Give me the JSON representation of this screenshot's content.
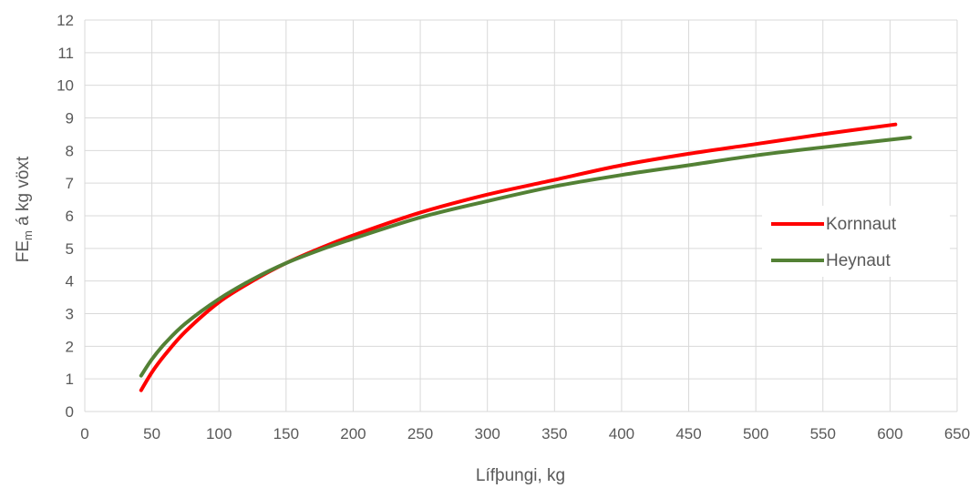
{
  "chart_data": {
    "type": "line",
    "title": "",
    "xlabel": "Lífþungi, kg",
    "ylabel": {
      "base": "FE",
      "subscript": "m",
      "rest": " á kg vöxt"
    },
    "xlim": [
      0,
      650
    ],
    "ylim": [
      0,
      12
    ],
    "xticks": [
      0,
      50,
      100,
      150,
      200,
      250,
      300,
      350,
      400,
      450,
      500,
      550,
      600,
      650
    ],
    "yticks": [
      0,
      1,
      2,
      3,
      4,
      5,
      6,
      7,
      8,
      9,
      10,
      11,
      12
    ],
    "grid": true,
    "legend_position": "right",
    "series": [
      {
        "name": "Kornnaut",
        "color": "#ff0000",
        "x": [
          42,
          50,
          60,
          75,
          100,
          125,
          150,
          175,
          200,
          250,
          300,
          350,
          400,
          450,
          500,
          550,
          604
        ],
        "y": [
          0.65,
          1.2,
          1.75,
          2.45,
          3.35,
          4.0,
          4.55,
          5.0,
          5.4,
          6.1,
          6.65,
          7.1,
          7.55,
          7.9,
          8.2,
          8.5,
          8.8
        ]
      },
      {
        "name": "Heynaut",
        "color": "#538135",
        "x": [
          42,
          50,
          60,
          75,
          100,
          125,
          150,
          175,
          200,
          250,
          300,
          350,
          400,
          450,
          500,
          550,
          615
        ],
        "y": [
          1.1,
          1.6,
          2.1,
          2.7,
          3.45,
          4.05,
          4.55,
          4.95,
          5.3,
          5.95,
          6.45,
          6.9,
          7.25,
          7.55,
          7.85,
          8.1,
          8.4
        ]
      }
    ]
  }
}
